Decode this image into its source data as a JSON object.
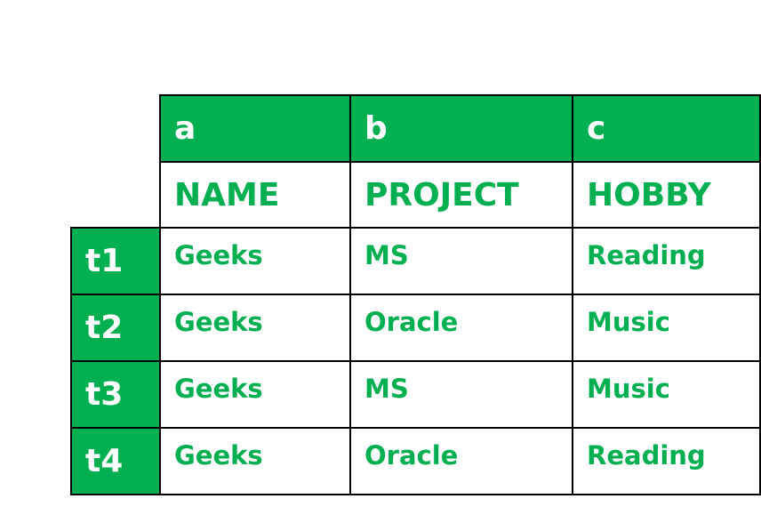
{
  "table": {
    "column_keys": [
      "a",
      "b",
      "c"
    ],
    "column_names": [
      "NAME",
      "PROJECT",
      "HOBBY"
    ],
    "rows": [
      {
        "label": "t1",
        "cells": [
          "Geeks",
          "MS",
          "Reading"
        ]
      },
      {
        "label": "t2",
        "cells": [
          "Geeks",
          "Oracle",
          "Music"
        ]
      },
      {
        "label": "t3",
        "cells": [
          "Geeks",
          "MS",
          "Music"
        ]
      },
      {
        "label": "t4",
        "cells": [
          "Geeks",
          "Oracle",
          "Reading"
        ]
      }
    ]
  },
  "colors": {
    "accent": "#00b050",
    "text_on_accent": "#ffffff",
    "border": "#000000"
  }
}
